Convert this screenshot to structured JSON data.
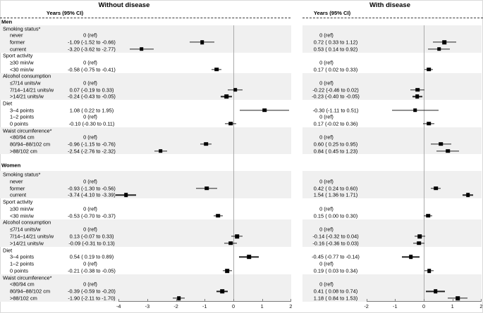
{
  "chart_data": {
    "type": "forest",
    "panels": [
      {
        "title": "Without disease",
        "col_header": "Years (95% CI)",
        "xlim": [
          -4,
          2
        ],
        "ticks": [
          -4,
          -3,
          -2,
          -1,
          0,
          1,
          2
        ]
      },
      {
        "title": "With disease",
        "col_header": "Years (95% CI)",
        "xlim": [
          -2,
          2
        ],
        "ticks": [
          -2,
          -1,
          0,
          1,
          2
        ]
      }
    ],
    "ref_label": "0 (ref)",
    "sections": [
      {
        "name": "Men",
        "groups": [
          {
            "label": "Smoking status*",
            "shaded": true,
            "items": [
              {
                "label": "never",
                "without": {
                  "text": "0 (ref)",
                  "est": null,
                  "lo": null,
                  "hi": null
                },
                "with": {
                  "text": "0 (ref)",
                  "est": null,
                  "lo": null,
                  "hi": null
                }
              },
              {
                "label": "former",
                "without": {
                  "text": "-1.09 (-1.52 to -0.66)",
                  "est": -1.09,
                  "lo": -1.52,
                  "hi": -0.66
                },
                "with": {
                  "text": "0.72 ( 0.33 to 1.12)",
                  "est": 0.72,
                  "lo": 0.33,
                  "hi": 1.12
                }
              },
              {
                "label": "current",
                "without": {
                  "text": "-3.20 (-3.62 to -2.77)",
                  "est": -3.2,
                  "lo": -3.62,
                  "hi": -2.77
                },
                "with": {
                  "text": "0.53 ( 0.14 to 0.92)",
                  "est": 0.53,
                  "lo": 0.14,
                  "hi": 0.92
                }
              }
            ]
          },
          {
            "label": "Sport activity",
            "shaded": false,
            "items": [
              {
                "label": "≥30 min/w",
                "without": {
                  "text": "0 (ref)",
                  "est": null,
                  "lo": null,
                  "hi": null
                },
                "with": {
                  "text": "0 (ref)",
                  "est": null,
                  "lo": null,
                  "hi": null
                }
              },
              {
                "label": "<30 min/w",
                "without": {
                  "text": "-0.58 (-0.75 to -0.41)",
                  "est": -0.58,
                  "lo": -0.75,
                  "hi": -0.41
                },
                "with": {
                  "text": "0.17 ( 0.02 to 0.33)",
                  "est": 0.17,
                  "lo": 0.02,
                  "hi": 0.33
                }
              }
            ]
          },
          {
            "label": "Alcohol consumption",
            "shaded": true,
            "items": [
              {
                "label": "≤7/14 units/w",
                "without": {
                  "text": "0 (ref)",
                  "est": null,
                  "lo": null,
                  "hi": null
                },
                "with": {
                  "text": "0 (ref)",
                  "est": null,
                  "lo": null,
                  "hi": null
                }
              },
              {
                "label": "7/14–14/21 units/w",
                "without": {
                  "text": "0.07 (-0.19 to 0.33)",
                  "est": 0.07,
                  "lo": -0.19,
                  "hi": 0.33
                },
                "with": {
                  "text": "-0.22 (-0.46 to 0.02)",
                  "est": -0.22,
                  "lo": -0.46,
                  "hi": 0.02
                }
              },
              {
                "label": ">14/21 units/w",
                "without": {
                  "text": "-0.24 (-0.43 to -0.05)",
                  "est": -0.24,
                  "lo": -0.43,
                  "hi": -0.05
                },
                "with": {
                  "text": "-0.23 (-0.40 to -0.05)",
                  "est": -0.23,
                  "lo": -0.4,
                  "hi": -0.05
                }
              }
            ]
          },
          {
            "label": "Diet",
            "shaded": false,
            "items": [
              {
                "label": "3–4 points",
                "without": {
                  "text": "1.08 ( 0.22 to 1.95)",
                  "est": 1.08,
                  "lo": 0.22,
                  "hi": 1.95
                },
                "with": {
                  "text": "-0.30 (-1.11 to 0.51)",
                  "est": -0.3,
                  "lo": -1.11,
                  "hi": 0.51
                }
              },
              {
                "label": "1–2 points",
                "without": {
                  "text": "0 (ref)",
                  "est": null,
                  "lo": null,
                  "hi": null
                },
                "with": {
                  "text": "0 (ref)",
                  "est": null,
                  "lo": null,
                  "hi": null
                }
              },
              {
                "label": "0 points",
                "without": {
                  "text": "-0.10 (-0.30 to 0.11)",
                  "est": -0.1,
                  "lo": -0.3,
                  "hi": 0.11
                },
                "with": {
                  "text": "0.17 (-0.02 to 0.36)",
                  "est": 0.17,
                  "lo": -0.02,
                  "hi": 0.36
                }
              }
            ]
          },
          {
            "label": "Waist circumference*",
            "shaded": true,
            "items": [
              {
                "label": "<80/94 cm",
                "without": {
                  "text": "0 (ref)",
                  "est": null,
                  "lo": null,
                  "hi": null
                },
                "with": {
                  "text": "0 (ref)",
                  "est": null,
                  "lo": null,
                  "hi": null
                }
              },
              {
                "label": "80/94–88/102 cm",
                "without": {
                  "text": "-0.96 (-1.15 to -0.76)",
                  "est": -0.96,
                  "lo": -1.15,
                  "hi": -0.76
                },
                "with": {
                  "text": "0.60 ( 0.25 to 0.95)",
                  "est": 0.6,
                  "lo": 0.25,
                  "hi": 0.95
                }
              },
              {
                "label": ">88/102 cm",
                "without": {
                  "text": "-2.54 (-2.76 to -2.32)",
                  "est": -2.54,
                  "lo": -2.76,
                  "hi": -2.32
                },
                "with": {
                  "text": "0.84 ( 0.45 to 1.23)",
                  "est": 0.84,
                  "lo": 0.45,
                  "hi": 1.23
                }
              }
            ]
          }
        ]
      },
      {
        "name": "Women",
        "groups": [
          {
            "label": "Smoking status*",
            "shaded": true,
            "items": [
              {
                "label": "never",
                "without": {
                  "text": "0 (ref)",
                  "est": null,
                  "lo": null,
                  "hi": null
                },
                "with": {
                  "text": "0 (ref)",
                  "est": null,
                  "lo": null,
                  "hi": null
                }
              },
              {
                "label": "former",
                "without": {
                  "text": "-0.93 (-1.30 to -0.56)",
                  "est": -0.93,
                  "lo": -1.3,
                  "hi": -0.56
                },
                "with": {
                  "text": "0.42 ( 0.24 to 0.60)",
                  "est": 0.42,
                  "lo": 0.24,
                  "hi": 0.6
                }
              },
              {
                "label": "current",
                "without": {
                  "text": "-3.74 (-4.10 to -3.39)",
                  "est": -3.74,
                  "lo": -4.1,
                  "hi": -3.39
                },
                "with": {
                  "text": "1.54 ( 1.36 to 1.71)",
                  "est": 1.54,
                  "lo": 1.36,
                  "hi": 1.71
                }
              }
            ]
          },
          {
            "label": "Sport activity",
            "shaded": false,
            "items": [
              {
                "label": "≥30 min/w",
                "without": {
                  "text": "0 (ref)",
                  "est": null,
                  "lo": null,
                  "hi": null
                },
                "with": {
                  "text": "0 (ref)",
                  "est": null,
                  "lo": null,
                  "hi": null
                }
              },
              {
                "label": "<30 min/w",
                "without": {
                  "text": "-0.53 (-0.70 to -0.37)",
                  "est": -0.53,
                  "lo": -0.7,
                  "hi": -0.37
                },
                "with": {
                  "text": "0.15 ( 0.00 to 0.30)",
                  "est": 0.15,
                  "lo": 0.0,
                  "hi": 0.3
                }
              }
            ]
          },
          {
            "label": "Alcohol consumption",
            "shaded": true,
            "items": [
              {
                "label": "≤7/14 units/w",
                "without": {
                  "text": "0 (ref)",
                  "est": null,
                  "lo": null,
                  "hi": null
                },
                "with": {
                  "text": "0 (ref)",
                  "est": null,
                  "lo": null,
                  "hi": null
                }
              },
              {
                "label": "7/14–14/21 units/w",
                "without": {
                  "text": "0.13 (-0.07 to 0.33)",
                  "est": 0.13,
                  "lo": -0.07,
                  "hi": 0.33
                },
                "with": {
                  "text": "-0.14 (-0.32 to 0.04)",
                  "est": -0.14,
                  "lo": -0.32,
                  "hi": 0.04
                }
              },
              {
                "label": ">14/21 units/w",
                "without": {
                  "text": "-0.09 (-0.31 to 0.13)",
                  "est": -0.09,
                  "lo": -0.31,
                  "hi": 0.13
                },
                "with": {
                  "text": "-0.16 (-0.36 to 0.03)",
                  "est": -0.16,
                  "lo": -0.36,
                  "hi": 0.03
                }
              }
            ]
          },
          {
            "label": "Diet",
            "shaded": false,
            "items": [
              {
                "label": "3–4 points",
                "without": {
                  "text": "0.54 ( 0.19 to 0.89)",
                  "est": 0.54,
                  "lo": 0.19,
                  "hi": 0.89
                },
                "with": {
                  "text": "-0.45 (-0.77 to -0.14)",
                  "est": -0.45,
                  "lo": -0.77,
                  "hi": -0.14
                }
              },
              {
                "label": "1–2 points",
                "without": {
                  "text": "0 (ref)",
                  "est": null,
                  "lo": null,
                  "hi": null
                },
                "with": {
                  "text": "0 (ref)",
                  "est": null,
                  "lo": null,
                  "hi": null
                }
              },
              {
                "label": "0 points",
                "without": {
                  "text": "-0.21 (-0.38 to -0.05)",
                  "est": -0.21,
                  "lo": -0.38,
                  "hi": -0.05
                },
                "with": {
                  "text": "0.19 ( 0.03 to 0.34)",
                  "est": 0.19,
                  "lo": 0.03,
                  "hi": 0.34
                }
              }
            ]
          },
          {
            "label": "Waist circumference*",
            "shaded": true,
            "items": [
              {
                "label": "<80/94 cm",
                "without": {
                  "text": "0 (ref)",
                  "est": null,
                  "lo": null,
                  "hi": null
                },
                "with": {
                  "text": "0 (ref)",
                  "est": null,
                  "lo": null,
                  "hi": null
                }
              },
              {
                "label": "80/94–88/102 cm",
                "without": {
                  "text": "-0.39 (-0.59 to -0.20)",
                  "est": -0.39,
                  "lo": -0.59,
                  "hi": -0.2
                },
                "with": {
                  "text": "0.41 ( 0.08 to 0.74)",
                  "est": 0.41,
                  "lo": 0.08,
                  "hi": 0.74
                }
              },
              {
                "label": ">88/102 cm",
                "without": {
                  "text": "-1.90 (-2.11 to -1.70)",
                  "est": -1.9,
                  "lo": -2.11,
                  "hi": -1.7
                },
                "with": {
                  "text": "1.18 ( 0.84 to 1.53)",
                  "est": 1.18,
                  "lo": 0.84,
                  "hi": 1.53
                }
              }
            ]
          }
        ]
      }
    ]
  }
}
